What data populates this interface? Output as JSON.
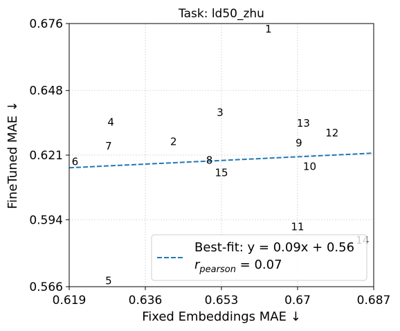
{
  "chart_data": {
    "type": "scatter",
    "title": "Task: ld50_zhu",
    "xlabel": "Fixed Embeddings MAE ↓",
    "ylabel": "FineTuned MAE ↓",
    "xlim": [
      0.619,
      0.687
    ],
    "ylim": [
      0.566,
      0.676
    ],
    "xticks": [
      "0.619",
      "0.636",
      "0.653",
      "0.67",
      "0.687"
    ],
    "xtick_values": [
      0.619,
      0.636,
      0.653,
      0.67,
      0.687
    ],
    "yticks": [
      "0.566",
      "0.594",
      "0.621",
      "0.648",
      "0.676"
    ],
    "ytick_values": [
      0.566,
      0.594,
      0.621,
      0.648,
      0.676
    ],
    "grid": true,
    "points": [
      {
        "label": "1",
        "x": 0.6635,
        "y": 0.6737
      },
      {
        "label": "2",
        "x": 0.6423,
        "y": 0.6267
      },
      {
        "label": "3",
        "x": 0.6527,
        "y": 0.6388
      },
      {
        "label": "4",
        "x": 0.6283,
        "y": 0.6348
      },
      {
        "label": "5",
        "x": 0.6278,
        "y": 0.5684
      },
      {
        "label": "6",
        "x": 0.6203,
        "y": 0.6183
      },
      {
        "label": "7",
        "x": 0.6278,
        "y": 0.6248
      },
      {
        "label": "8",
        "x": 0.6503,
        "y": 0.6188
      },
      {
        "label": "9",
        "x": 0.6703,
        "y": 0.626
      },
      {
        "label": "10",
        "x": 0.6727,
        "y": 0.6162
      },
      {
        "label": "11",
        "x": 0.67,
        "y": 0.5911
      },
      {
        "label": "12",
        "x": 0.6777,
        "y": 0.6302
      },
      {
        "label": "13",
        "x": 0.6713,
        "y": 0.6343
      },
      {
        "label": "14",
        "x": 0.6845,
        "y": 0.5854
      },
      {
        "label": "15",
        "x": 0.653,
        "y": 0.6136
      }
    ],
    "fit_line": {
      "slope": 0.09,
      "intercept": 0.56,
      "color": "#1f77b4",
      "style": "dashed"
    },
    "legend": {
      "position": "lower-right",
      "fit_label": "Best-fit: y = 0.09x + 0.56",
      "pearson_label": "r",
      "pearson_sub": "pearson",
      "pearson_value": " = 0.07"
    }
  }
}
